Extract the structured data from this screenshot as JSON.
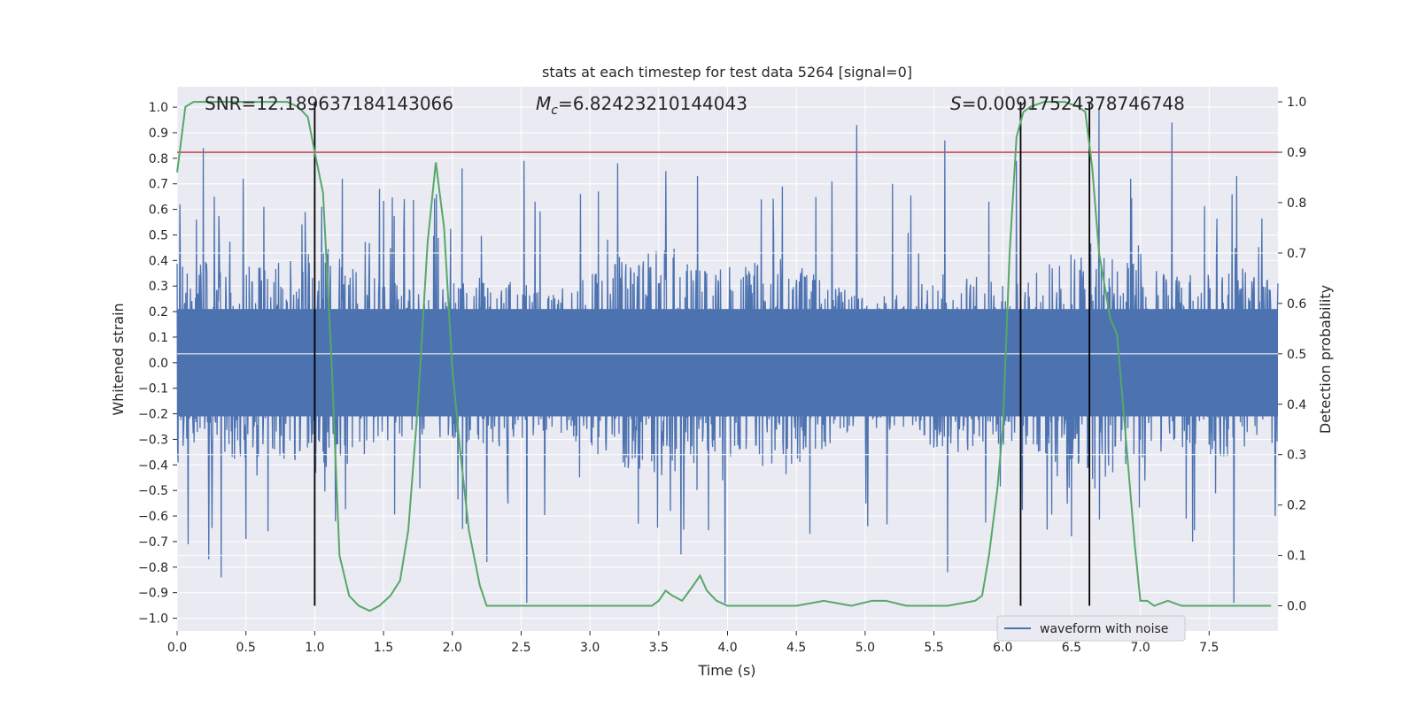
{
  "chart_data": {
    "type": "line",
    "title": "stats at each timestep for test data 5264 [signal=0]",
    "xlabel": "Time (s)",
    "ylabel_left": "Whitened strain",
    "ylabel_right": "Detection probability",
    "xlim": [
      0.0,
      8.0
    ],
    "ylim_left": [
      -1.05,
      1.08
    ],
    "ylim_right": [
      -0.05,
      1.03
    ],
    "x_ticks": [
      0.0,
      0.5,
      1.0,
      1.5,
      2.0,
      2.5,
      3.0,
      3.5,
      4.0,
      4.5,
      5.0,
      5.5,
      6.0,
      6.5,
      7.0,
      7.5
    ],
    "x_tick_labels": [
      "0.0",
      "0.5",
      "1.0",
      "1.5",
      "2.0",
      "2.5",
      "3.0",
      "3.5",
      "4.0",
      "4.5",
      "5.0",
      "5.5",
      "6.0",
      "6.5",
      "7.0",
      "7.5"
    ],
    "y_left_ticks": [
      1.0,
      0.9,
      0.8,
      0.7,
      0.6,
      0.5,
      0.4,
      0.3,
      0.2,
      0.1,
      0.0,
      -0.1,
      -0.2,
      -0.3,
      -0.4,
      -0.5,
      -0.6,
      -0.7,
      -0.8,
      -0.9,
      -1.0
    ],
    "y_left_tick_labels": [
      "1.0",
      "0.9",
      "0.8",
      "0.7",
      "0.6",
      "0.5",
      "0.4",
      "0.3",
      "0.2",
      "0.1",
      "0.0",
      "−0.1",
      "−0.2",
      "−0.3",
      "−0.4",
      "−0.5",
      "−0.6",
      "−0.7",
      "−0.8",
      "−0.9",
      "−1.0"
    ],
    "y_right_ticks": [
      1.0,
      0.9,
      0.8,
      0.7,
      0.6,
      0.5,
      0.4,
      0.3,
      0.2,
      0.1,
      0.0
    ],
    "y_right_tick_labels": [
      "1.0",
      "0.9",
      "0.8",
      "0.7",
      "0.6",
      "0.5",
      "0.4",
      "0.3",
      "0.2",
      "0.1",
      "0.0"
    ],
    "annotations": {
      "snr": "SNR=12.189637184143066",
      "mc_symbol": "M",
      "mc_subscript": "c",
      "mc_value": "=6.82423210144043",
      "s_symbol": "S",
      "s_value": "=0.009175243787467‌48"
    },
    "threshold": {
      "value": 0.9,
      "axis": "right",
      "color": "#c44e52"
    },
    "vertical_markers_s": [
      1.0,
      6.13,
      6.63
    ],
    "waveform": {
      "name": "waveform with noise",
      "color": "#4c72b0",
      "description_range": "dense noise, max about 0.93, min about -0.94",
      "peaks": [
        [
          0.02,
          0.62
        ],
        [
          0.08,
          -0.71
        ],
        [
          0.14,
          0.56
        ],
        [
          0.19,
          0.84
        ],
        [
          0.23,
          -0.77
        ],
        [
          0.27,
          0.65
        ],
        [
          0.32,
          -0.84
        ],
        [
          0.48,
          0.72
        ],
        [
          0.5,
          -0.69
        ],
        [
          0.63,
          0.61
        ],
        [
          0.66,
          -0.66
        ],
        [
          0.93,
          0.59
        ],
        [
          1.05,
          0.61
        ],
        [
          1.15,
          -0.62
        ],
        [
          1.2,
          0.72
        ],
        [
          1.47,
          0.68
        ],
        [
          1.65,
          0.64
        ],
        [
          2.07,
          0.76
        ],
        [
          2.1,
          -0.63
        ],
        [
          2.25,
          -0.78
        ],
        [
          2.52,
          0.79
        ],
        [
          2.54,
          -0.94
        ],
        [
          2.93,
          0.66
        ],
        [
          3.06,
          0.67
        ],
        [
          3.2,
          0.78
        ],
        [
          3.35,
          -0.63
        ],
        [
          3.55,
          0.75
        ],
        [
          3.66,
          -0.75
        ],
        [
          3.78,
          0.73
        ],
        [
          3.98,
          -0.94
        ],
        [
          4.4,
          0.69
        ],
        [
          4.6,
          -0.67
        ],
        [
          4.76,
          0.71
        ],
        [
          4.94,
          0.93
        ],
        [
          5.02,
          -0.64
        ],
        [
          5.2,
          0.7
        ],
        [
          5.58,
          0.87
        ],
        [
          5.6,
          -0.82
        ],
        [
          5.9,
          0.63
        ],
        [
          6.1,
          0.79
        ],
        [
          6.5,
          -0.68
        ],
        [
          6.7,
          0.99
        ],
        [
          6.93,
          0.72
        ],
        [
          7.23,
          0.94
        ],
        [
          7.38,
          -0.7
        ],
        [
          7.68,
          -0.94
        ],
        [
          7.7,
          0.73
        ],
        [
          7.98,
          0.74
        ],
        [
          7.98,
          -0.6
        ]
      ]
    },
    "detection_probability": {
      "color": "#55a868",
      "x": [
        0.0,
        0.06,
        0.12,
        0.2,
        0.3,
        0.4,
        0.5,
        0.6,
        0.7,
        0.8,
        0.88,
        0.95,
        1.0,
        1.06,
        1.12,
        1.18,
        1.25,
        1.32,
        1.4,
        1.47,
        1.55,
        1.62,
        1.68,
        1.75,
        1.82,
        1.88,
        1.94,
        2.0,
        2.06,
        2.12,
        2.2,
        2.25,
        2.35,
        2.5,
        2.7,
        3.0,
        3.3,
        3.45,
        3.5,
        3.55,
        3.6,
        3.67,
        3.75,
        3.8,
        3.85,
        3.92,
        4.0,
        4.2,
        4.5,
        4.7,
        4.9,
        5.05,
        5.15,
        5.3,
        5.6,
        5.8,
        5.85,
        5.9,
        5.96,
        6.0,
        6.05,
        6.1,
        6.15,
        6.2,
        6.3,
        6.45,
        6.55,
        6.6,
        6.65,
        6.7,
        6.75,
        6.78,
        6.83,
        6.88,
        6.92,
        6.96,
        7.0,
        7.05,
        7.1,
        7.2,
        7.3,
        7.5,
        7.8,
        7.95
      ],
      "y": [
        0.86,
        0.99,
        1.0,
        1.0,
        1.0,
        1.0,
        1.0,
        1.0,
        1.0,
        1.0,
        0.99,
        0.97,
        0.9,
        0.82,
        0.5,
        0.1,
        0.02,
        0.0,
        -0.01,
        0.0,
        0.02,
        0.05,
        0.15,
        0.4,
        0.72,
        0.88,
        0.75,
        0.47,
        0.3,
        0.15,
        0.04,
        0.0,
        0.0,
        0.0,
        0.0,
        0.0,
        0.0,
        0.0,
        0.01,
        0.03,
        0.02,
        0.01,
        0.04,
        0.06,
        0.03,
        0.01,
        0.0,
        0.0,
        0.0,
        0.01,
        0.0,
        0.01,
        0.01,
        0.0,
        0.0,
        0.01,
        0.02,
        0.1,
        0.23,
        0.35,
        0.7,
        0.93,
        0.98,
        0.99,
        1.0,
        1.0,
        0.99,
        0.98,
        0.87,
        0.7,
        0.62,
        0.57,
        0.54,
        0.38,
        0.25,
        0.12,
        0.01,
        0.01,
        0.0,
        0.01,
        0.0,
        0.0,
        0.0,
        0.0
      ]
    },
    "legend": {
      "label": "waveform with noise",
      "placement": "lower-right"
    }
  }
}
